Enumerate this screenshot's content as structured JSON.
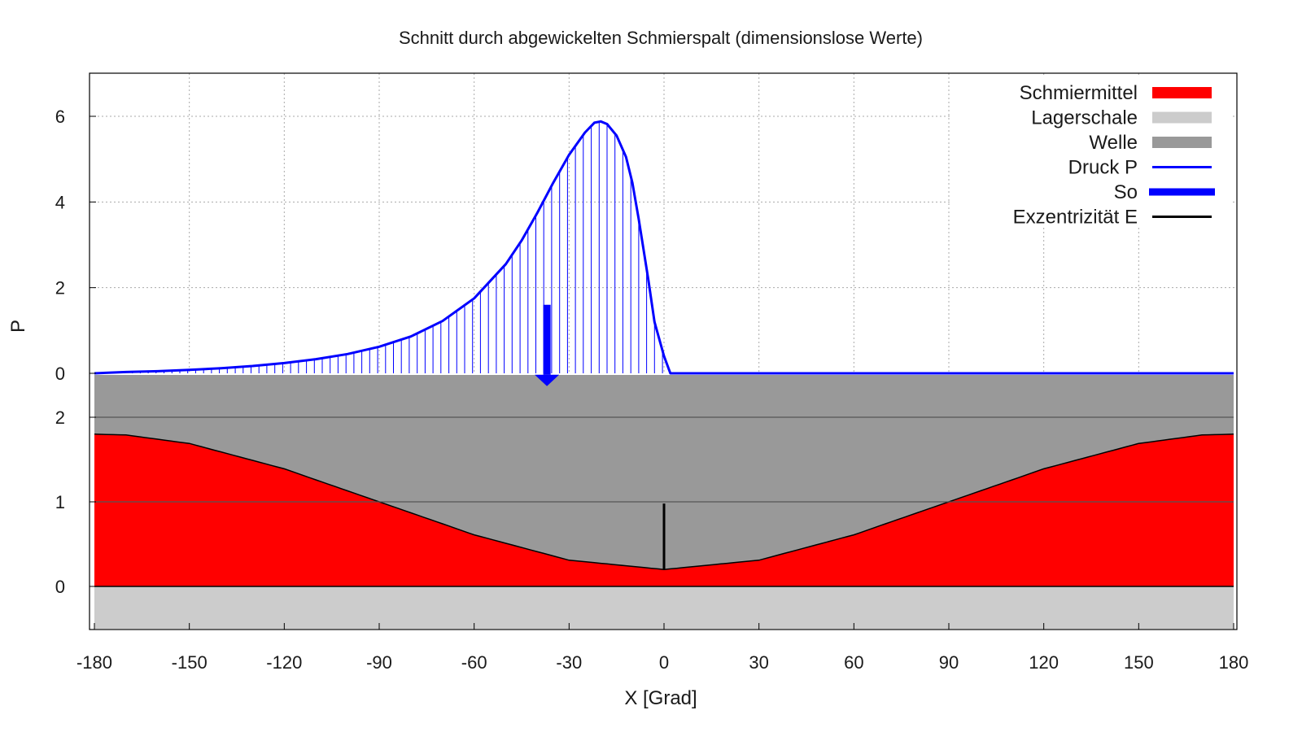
{
  "chart_data": {
    "type": "area",
    "title": "Schnitt durch abgewickelten Schmierspalt (dimensionslose Werte)",
    "xlabel": "X [Grad]",
    "ylabel": "P",
    "grid": true,
    "legend_position": "top-right",
    "x_ticks": [
      "-180",
      "-150",
      "-120",
      "-90",
      "-60",
      "-30",
      "0",
      "30",
      "60",
      "90",
      "120",
      "150",
      "180"
    ],
    "xlim": [
      -180,
      180
    ],
    "upper_panel": {
      "y_ticks": [
        "0",
        "2",
        "4",
        "6"
      ],
      "ylim": [
        0,
        7.2
      ]
    },
    "lower_panel": {
      "y_ticks": [
        "0",
        "1",
        "2"
      ],
      "ylim": [
        -0.5,
        2.5
      ]
    },
    "legend": [
      {
        "label": "Schmiermittel",
        "kind": "area",
        "color": "#ff0000"
      },
      {
        "label": "Lagerschale",
        "kind": "area",
        "color": "#cccccc"
      },
      {
        "label": "Welle",
        "kind": "area",
        "color": "#999999"
      },
      {
        "label": "Druck P",
        "kind": "line",
        "color": "#0000ff"
      },
      {
        "label": "So",
        "kind": "thick-line",
        "color": "#0000ff"
      },
      {
        "label": "Exzentrizität E",
        "kind": "line",
        "color": "#000000"
      }
    ],
    "series": [
      {
        "name": "Druck P",
        "x": [
          -180,
          -170,
          -160,
          -150,
          -140,
          -130,
          -120,
          -110,
          -100,
          -90,
          -80,
          -70,
          -60,
          -50,
          -45,
          -40,
          -35,
          -30,
          -25,
          -22,
          -20,
          -18,
          -15,
          -12,
          -10,
          -8,
          -5,
          -3,
          0,
          2,
          180
        ],
        "y": [
          0.0,
          0.03,
          0.05,
          0.08,
          0.12,
          0.17,
          0.24,
          0.33,
          0.45,
          0.62,
          0.86,
          1.22,
          1.75,
          2.55,
          3.1,
          3.75,
          4.45,
          5.1,
          5.62,
          5.85,
          5.88,
          5.82,
          5.55,
          5.05,
          4.45,
          3.6,
          2.2,
          1.2,
          0.4,
          0.0,
          0.0
        ]
      },
      {
        "name": "Schmiermittel",
        "x": [
          -180,
          -170,
          -150,
          -120,
          -90,
          -60,
          -30,
          0,
          30,
          60,
          90,
          120,
          150,
          170,
          180
        ],
        "y": [
          1.8,
          1.79,
          1.69,
          1.39,
          1.0,
          0.61,
          0.31,
          0.2,
          0.31,
          0.61,
          1.0,
          1.39,
          1.69,
          1.79,
          1.8
        ]
      }
    ],
    "so": {
      "x": -37,
      "p_from": 1.6,
      "p_to": -0.3
    },
    "exzentrizitaet": {
      "x": 0,
      "y_from": 0.2,
      "y_to": 0.98
    },
    "welle_top": 2.5,
    "lagerschale_bottom": -0.5
  }
}
